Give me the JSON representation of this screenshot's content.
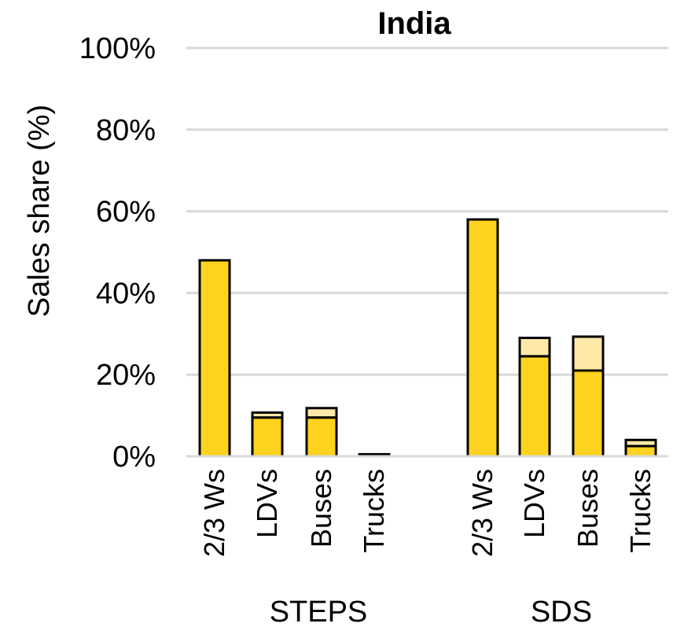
{
  "chart_data": {
    "type": "bar",
    "stacked": true,
    "title": "India",
    "ylabel": "Sales share (%)",
    "xlabel": "",
    "ylim": [
      0,
      100
    ],
    "yticks": [
      0,
      20,
      40,
      60,
      80,
      100
    ],
    "ytick_labels": [
      "0%",
      "20%",
      "40%",
      "60%",
      "80%",
      "100%"
    ],
    "grid": true,
    "groups": [
      "STEPS",
      "SDS"
    ],
    "categories": [
      "2/3 Ws",
      "LDVs",
      "Buses",
      "Trucks",
      "2/3 Ws",
      "LDVs",
      "Buses",
      "Trucks"
    ],
    "group_index": [
      0,
      0,
      0,
      0,
      1,
      1,
      1,
      1
    ],
    "series": [
      {
        "values": [
          48,
          9.5,
          9.5,
          0.3,
          58,
          24.5,
          21,
          2.5
        ],
        "color": "#FFD21F"
      },
      {
        "values": [
          0,
          1.2,
          2.3,
          0.2,
          0,
          4.5,
          8.3,
          1.5
        ],
        "color": "#FFE9A8"
      }
    ]
  }
}
